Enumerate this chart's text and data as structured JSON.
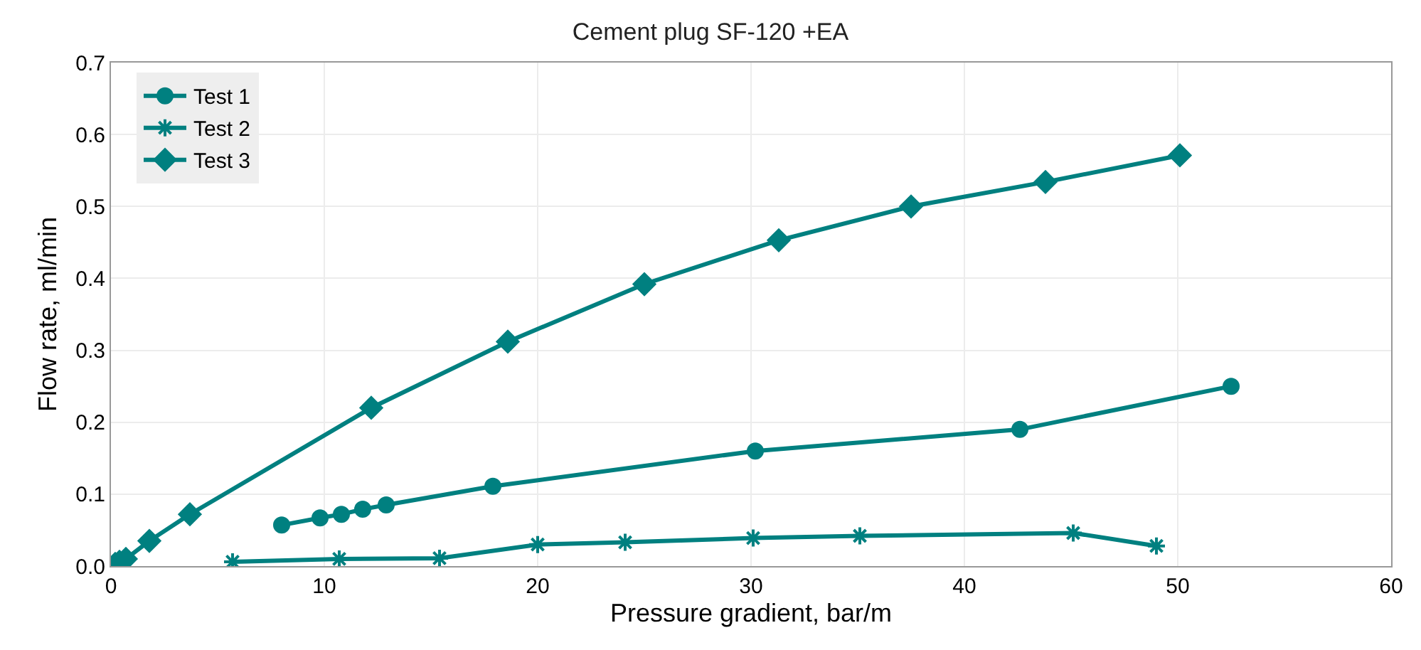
{
  "chart_data": {
    "type": "line",
    "title": "Cement plug SF-120 +EA",
    "xlabel": "Pressure gradient, bar/m",
    "ylabel": "Flow rate, ml/min",
    "xlim": [
      0,
      60
    ],
    "xticks": [
      0,
      10,
      20,
      30,
      40,
      50,
      60
    ],
    "ylim": [
      0,
      0.7
    ],
    "yticks": [
      {
        "value": 0,
        "label": "0.0"
      },
      {
        "value": 0.1,
        "label": "0.1"
      },
      {
        "value": 0.2,
        "label": "0.2"
      },
      {
        "value": 0.3,
        "label": "0.3"
      },
      {
        "value": 0.4,
        "label": "0.4"
      },
      {
        "value": 0.5,
        "label": "0.5"
      },
      {
        "value": 0.6,
        "label": "0.6"
      },
      {
        "value": 0.7,
        "label": "0.7"
      }
    ],
    "grid": true,
    "legend": "top left",
    "line_style": "solid",
    "series": [
      {
        "name": "Test 1",
        "color": "#008080",
        "marker": "circle",
        "x": [
          8.0,
          9.8,
          10.8,
          11.8,
          12.9,
          17.9,
          30.2,
          42.6,
          52.5
        ],
        "values": [
          0.057,
          0.067,
          0.072,
          0.079,
          0.085,
          0.111,
          0.16,
          0.19,
          0.25
        ]
      },
      {
        "name": "Test 2",
        "color": "#008080",
        "marker": "cross",
        "x": [
          5.7,
          10.7,
          15.4,
          20.0,
          24.1,
          30.1,
          35.1,
          45.1,
          49.0
        ],
        "values": [
          0.006,
          0.01,
          0.011,
          0.03,
          0.033,
          0.039,
          0.042,
          0.046,
          0.028
        ]
      },
      {
        "name": "Test 3",
        "color": "#008080",
        "marker": "diamond",
        "x": [
          0.2,
          0.4,
          0.7,
          1.8,
          3.7,
          12.2,
          18.6,
          25.0,
          31.3,
          37.5,
          43.8,
          50.1
        ],
        "values": [
          0.003,
          0.006,
          0.01,
          0.035,
          0.072,
          0.22,
          0.312,
          0.392,
          0.453,
          0.5,
          0.534,
          0.571
        ]
      }
    ]
  }
}
